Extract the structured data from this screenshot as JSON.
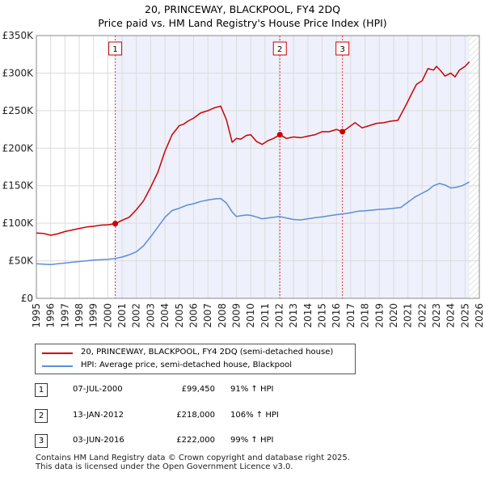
{
  "header": {
    "title": "20, PRINCEWAY, BLACKPOOL, FY4 2DQ",
    "subtitle": "Price paid vs. HM Land Registry's House Price Index (HPI)"
  },
  "chart_data": {
    "type": "line",
    "title": "20, PRINCEWAY, BLACKPOOL, FY4 2DQ",
    "subtitle": "Price paid vs. HM Land Registry's House Price Index (HPI)",
    "xlim": [
      1995,
      2026
    ],
    "ylim": [
      0,
      350000
    ],
    "y_ticks": [
      0,
      50000,
      100000,
      150000,
      200000,
      250000,
      300000,
      350000
    ],
    "y_tick_labels": [
      "£0",
      "£50K",
      "£100K",
      "£150K",
      "£200K",
      "£250K",
      "£300K",
      "£350K"
    ],
    "x_ticks": [
      1995,
      1996,
      1997,
      1998,
      1999,
      2000,
      2001,
      2002,
      2003,
      2004,
      2005,
      2006,
      2007,
      2008,
      2009,
      2010,
      2011,
      2012,
      2013,
      2014,
      2015,
      2016,
      2017,
      2018,
      2019,
      2020,
      2021,
      2022,
      2023,
      2024,
      2025,
      2026
    ],
    "x_tick_labels": [
      "1995",
      "1996",
      "1997",
      "1998",
      "1999",
      "2000",
      "2001",
      "2002",
      "2003",
      "2004",
      "2005",
      "2006",
      "2007",
      "2008",
      "2009",
      "2010",
      "2011",
      "2012",
      "2013",
      "2014",
      "2015",
      "2016",
      "2017",
      "2018",
      "2019",
      "2020",
      "2021",
      "2022",
      "2023",
      "2024",
      "2025",
      "2026"
    ],
    "grid": true,
    "owned_period": [
      2000.52,
      2025.3
    ],
    "forecast_from": 2025.3,
    "series": [
      {
        "name": "20, PRINCEWAY, BLACKPOOL, FY4 2DQ (semi-detached house)",
        "color": "#cc0000",
        "x": [
          1995.0,
          1995.5,
          1996.0,
          1996.5,
          1997.0,
          1997.5,
          1998.0,
          1998.5,
          1999.0,
          1999.5,
          2000.0,
          2000.52,
          2001.0,
          2001.5,
          2002.0,
          2002.5,
          2003.0,
          2003.5,
          2004.0,
          2004.5,
          2005.0,
          2005.3,
          2005.6,
          2006.0,
          2006.5,
          2007.0,
          2007.5,
          2007.9,
          2008.3,
          2008.7,
          2009.0,
          2009.3,
          2009.7,
          2010.0,
          2010.4,
          2010.8,
          2011.2,
          2011.6,
          2012.04,
          2012.5,
          2013.0,
          2013.5,
          2014.0,
          2014.5,
          2015.0,
          2015.5,
          2016.0,
          2016.42,
          2016.8,
          2017.3,
          2017.8,
          2018.3,
          2018.8,
          2019.3,
          2019.8,
          2020.3,
          2020.8,
          2021.3,
          2021.6,
          2022.0,
          2022.4,
          2022.8,
          2023.0,
          2023.3,
          2023.6,
          2024.0,
          2024.3,
          2024.6,
          2025.0,
          2025.3
        ],
        "values": [
          87000,
          86500,
          84000,
          86000,
          89000,
          91000,
          93000,
          95000,
          96000,
          97500,
          98000,
          99450,
          104000,
          108000,
          118000,
          130000,
          148000,
          168000,
          196000,
          218000,
          230000,
          232000,
          236000,
          240000,
          247000,
          250000,
          254000,
          256000,
          238000,
          208000,
          213000,
          212000,
          217000,
          218000,
          209000,
          205000,
          210000,
          213000,
          218000,
          213000,
          215000,
          214000,
          216000,
          218000,
          222000,
          222000,
          225000,
          222000,
          227000,
          234000,
          227000,
          230000,
          233000,
          234000,
          236000,
          237000,
          255000,
          274000,
          285000,
          290000,
          306000,
          304000,
          309000,
          303000,
          296000,
          300000,
          295000,
          304000,
          309000,
          315000
        ],
        "sales": [
          {
            "x": 2000.52,
            "value": 99450,
            "label": "1"
          },
          {
            "x": 2012.04,
            "value": 218000,
            "label": "2"
          },
          {
            "x": 2016.42,
            "value": 222000,
            "label": "3"
          }
        ]
      },
      {
        "name": "HPI: Average price, semi-detached house, Blackpool",
        "color": "#5b8ed6",
        "x": [
          1995.0,
          1995.5,
          1996.0,
          1996.5,
          1997.0,
          1997.5,
          1998.0,
          1998.5,
          1999.0,
          1999.5,
          2000.0,
          2000.5,
          2001.0,
          2001.5,
          2002.0,
          2002.5,
          2003.0,
          2003.5,
          2004.0,
          2004.5,
          2005.0,
          2005.5,
          2006.0,
          2006.5,
          2007.0,
          2007.5,
          2007.9,
          2008.3,
          2008.7,
          2009.0,
          2009.3,
          2009.7,
          2010.0,
          2010.4,
          2010.8,
          2011.2,
          2011.6,
          2012.0,
          2012.5,
          2013.0,
          2013.5,
          2014.0,
          2014.5,
          2015.0,
          2015.5,
          2016.0,
          2016.5,
          2017.0,
          2017.5,
          2018.0,
          2018.5,
          2019.0,
          2019.5,
          2020.0,
          2020.5,
          2021.0,
          2021.5,
          2022.0,
          2022.4,
          2022.8,
          2023.2,
          2023.6,
          2024.0,
          2024.4,
          2024.8,
          2025.0,
          2025.3
        ],
        "values": [
          46000,
          45500,
          45000,
          46000,
          47000,
          48000,
          49000,
          50000,
          51000,
          51500,
          52000,
          53000,
          55000,
          58000,
          62000,
          70000,
          82000,
          95000,
          108000,
          117000,
          120000,
          124000,
          126000,
          129000,
          131000,
          132500,
          133000,
          127000,
          115000,
          109000,
          110000,
          111000,
          110500,
          108500,
          106000,
          107000,
          108000,
          109000,
          107000,
          105000,
          104500,
          106000,
          107500,
          108500,
          110000,
          111500,
          112500,
          114000,
          116000,
          116500,
          117500,
          118500,
          119000,
          120000,
          121000,
          128000,
          135000,
          140000,
          144000,
          150000,
          153000,
          151000,
          147000,
          148000,
          150000,
          152000,
          155000
        ]
      }
    ]
  },
  "legend": {
    "items": [
      {
        "label": "20, PRINCEWAY, BLACKPOOL, FY4 2DQ (semi-detached house)",
        "color": "#cc0000"
      },
      {
        "label": "HPI: Average price, semi-detached house, Blackpool",
        "color": "#5b8ed6"
      }
    ]
  },
  "sales": [
    {
      "num": "1",
      "date": "07-JUL-2000",
      "price": "£99,450",
      "hpi": "91% ↑ HPI"
    },
    {
      "num": "2",
      "date": "13-JAN-2012",
      "price": "£218,000",
      "hpi": "106% ↑ HPI"
    },
    {
      "num": "3",
      "date": "03-JUN-2016",
      "price": "£222,000",
      "hpi": "99% ↑ HPI"
    }
  ],
  "footer": {
    "line1": "Contains HM Land Registry data © Crown copyright and database right 2025.",
    "line2": "This data is licensed under the Open Government Licence v3.0."
  }
}
